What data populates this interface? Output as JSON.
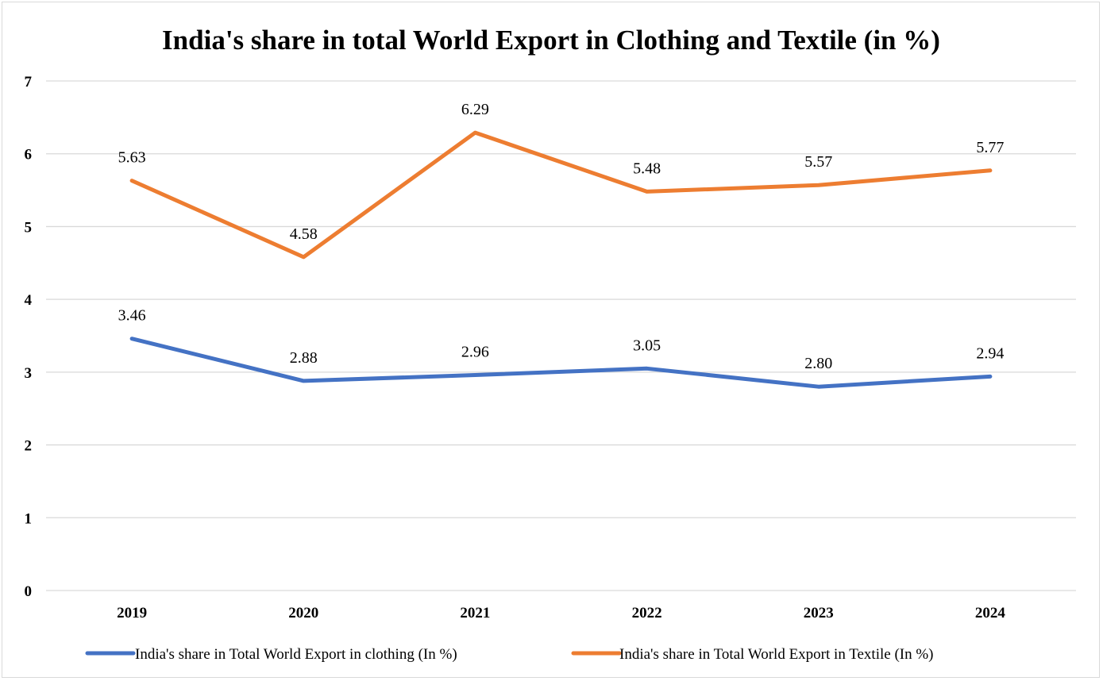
{
  "chart_data": {
    "type": "line",
    "title": "India's share in total World Export in Clothing and Textile (in %)",
    "xlabel": "",
    "ylabel": "",
    "categories": [
      "2019",
      "2020",
      "2021",
      "2022",
      "2023",
      "2024"
    ],
    "ylim": [
      0,
      7
    ],
    "yticks": [
      "0",
      "1",
      "2",
      "3",
      "4",
      "5",
      "6",
      "7"
    ],
    "grid": true,
    "legend_position": "bottom",
    "series": [
      {
        "name": "India's share in Total World Export in clothing (In %)",
        "color": "#4472c4",
        "values": [
          3.46,
          2.88,
          2.96,
          3.05,
          2.8,
          2.94
        ],
        "labels": [
          "3.46",
          "2.88",
          "2.96",
          "3.05",
          "2.80",
          "2.94"
        ]
      },
      {
        "name": "India's share in Total World Export in Textile (In %)",
        "color": "#ed7d31",
        "values": [
          5.63,
          4.58,
          6.29,
          5.48,
          5.57,
          5.77
        ],
        "labels": [
          "5.63",
          "4.58",
          "6.29",
          "5.48",
          "5.57",
          "5.77"
        ]
      }
    ]
  }
}
